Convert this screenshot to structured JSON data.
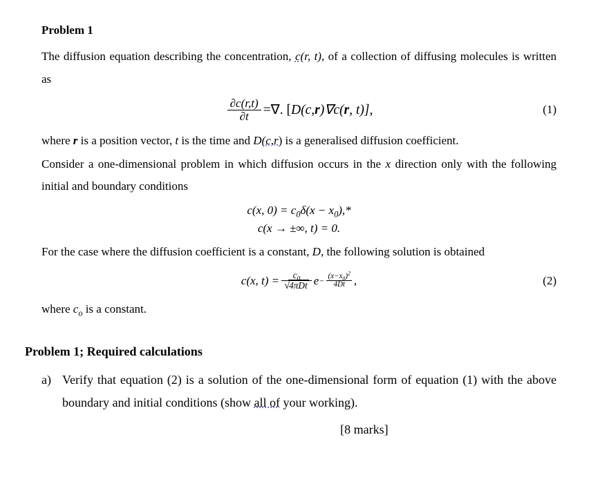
{
  "title": "Problem 1",
  "intro_part1": "The diffusion equation describing the concentration, ",
  "intro_c_of": "c",
  "intro_args": "(r, t)",
  "intro_part2": ", of a collection of diffusing molecules is written as",
  "eq1": {
    "lhs_num_d": "∂c(r,t)",
    "lhs_den_d": "∂t",
    "eq_sign": " = ",
    "nabla_dot": "∇. [",
    "D_open": "D(c, ",
    "bold_r": "r",
    "D_close": ")∇c(",
    "bold_r2": "r",
    "tail": ", t)],",
    "number": "(1)"
  },
  "para2_a": "where ",
  "para2_r": "r",
  "para2_b": " is a position vector, ",
  "para2_t": "t",
  "para2_c": " is the time and ",
  "para2_D": "D(",
  "para2_cr": "c,r",
  "para2_d": ") is a generalised diffusion coefficient.",
  "para3": "Consider a one-dimensional problem in which diffusion occurs in the ",
  "para3_x": "x",
  "para3_b": " direction only with the following initial and boundary conditions",
  "cond1_a": "c(x, 0) = c",
  "cond1_sub0": "0",
  "cond1_b": "δ(x − x",
  "cond1_sub0b": "0",
  "cond1_c": "),*",
  "cond2": "c(x → ±∞, t) = 0.",
  "para4_a": "For the case where the diffusion coefficient is a constant, ",
  "para4_D": "D",
  "para4_b": ", the following solution is obtained",
  "eq2": {
    "lhs": "c(x, t) = ",
    "num_c0": "c",
    "num_c0_sub": "0",
    "den_inside": "4πDt",
    "exp_e": "e",
    "exp_neg": "−",
    "exp_num_a": "(x−x",
    "exp_num_sub": "0",
    "exp_num_b": ")",
    "exp_num_pow": "2",
    "exp_den": "4Dt",
    "trail": " ,",
    "number": "(2)"
  },
  "para5_a": "where ",
  "para5_c": "c",
  "para5_sub": "o",
  "para5_b": " is a constant.",
  "section2": "Problem 1; Required calculations",
  "part_a_label": "a)",
  "part_a_text1": "Verify that equation (2) is a solution of the one-dimensional form of equation (1) with the above boundary and initial conditions (show ",
  "part_a_allof": "all of",
  "part_a_text2": " your working).",
  "marks": "[8 marks]"
}
